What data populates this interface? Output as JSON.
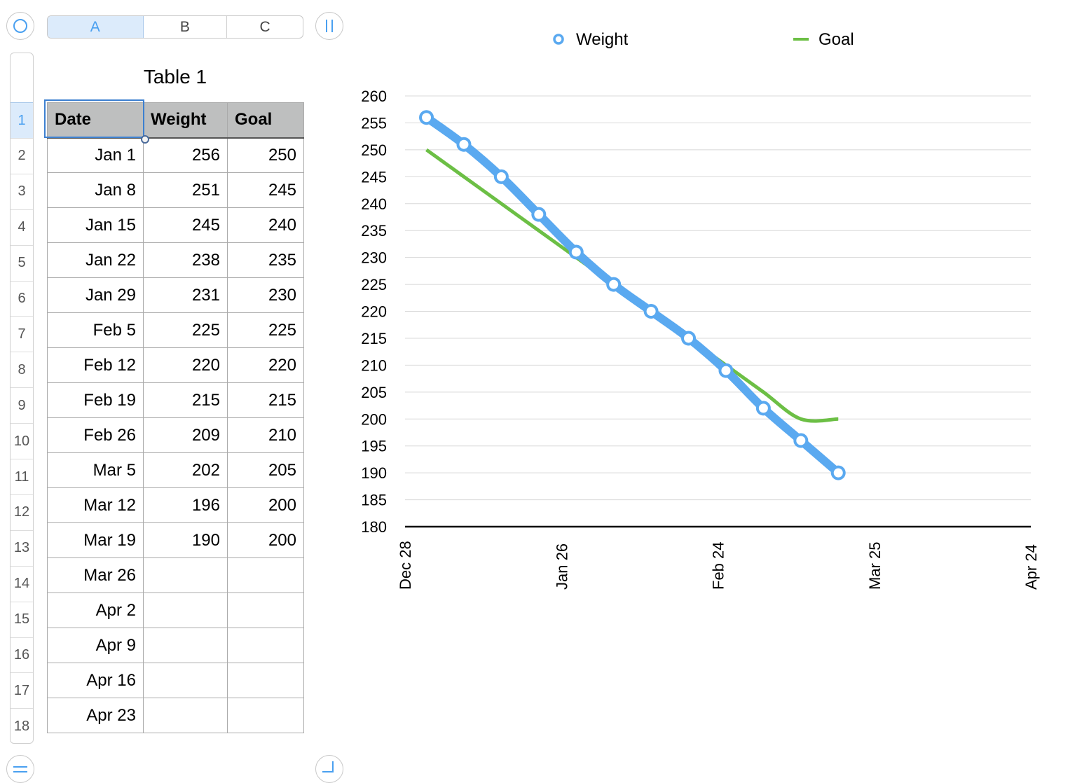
{
  "columns": [
    "A",
    "B",
    "C"
  ],
  "table": {
    "title": "Table 1",
    "headers": [
      "Date",
      "Weight",
      "Goal"
    ],
    "rows": [
      [
        "Jan 1",
        "256",
        "250"
      ],
      [
        "Jan 8",
        "251",
        "245"
      ],
      [
        "Jan 15",
        "245",
        "240"
      ],
      [
        "Jan 22",
        "238",
        "235"
      ],
      [
        "Jan 29",
        "231",
        "230"
      ],
      [
        "Feb 5",
        "225",
        "225"
      ],
      [
        "Feb 12",
        "220",
        "220"
      ],
      [
        "Feb 19",
        "215",
        "215"
      ],
      [
        "Feb 26",
        "209",
        "210"
      ],
      [
        "Mar 5",
        "202",
        "205"
      ],
      [
        "Mar 12",
        "196",
        "200"
      ],
      [
        "Mar 19",
        "190",
        "200"
      ],
      [
        "Mar 26",
        "",
        ""
      ],
      [
        "Apr 2",
        "",
        ""
      ],
      [
        "Apr 9",
        "",
        ""
      ],
      [
        "Apr 16",
        "",
        ""
      ],
      [
        "Apr 23",
        "",
        ""
      ]
    ]
  },
  "row_numbers": [
    "1",
    "2",
    "3",
    "4",
    "5",
    "6",
    "7",
    "8",
    "9",
    "10",
    "11",
    "12",
    "13",
    "14",
    "15",
    "16",
    "17",
    "18"
  ],
  "chart_data": {
    "type": "line",
    "legend": [
      "Weight",
      "Goal"
    ],
    "legend_position": "top",
    "x_day_offsets": [
      4,
      11,
      18,
      25,
      32,
      39,
      46,
      53,
      60,
      67,
      74,
      81
    ],
    "series": [
      {
        "name": "Weight",
        "color": "#5aa9f0",
        "values": [
          256,
          251,
          245,
          238,
          231,
          225,
          220,
          215,
          209,
          202,
          196,
          190
        ]
      },
      {
        "name": "Goal",
        "color": "#6cbf45",
        "values": [
          250,
          245,
          240,
          235,
          230,
          225,
          220,
          215,
          210,
          205,
          200,
          200
        ]
      }
    ],
    "ylim": [
      180,
      260
    ],
    "yticks": [
      "180",
      "185",
      "190",
      "195",
      "200",
      "205",
      "210",
      "215",
      "220",
      "225",
      "230",
      "235",
      "240",
      "245",
      "250",
      "255",
      "260"
    ],
    "xlim_days": [
      0,
      117
    ],
    "xticks": [
      "Dec 28",
      "Jan 26",
      "Feb 24",
      "Mar 25",
      "Apr 24"
    ],
    "grid": true
  }
}
